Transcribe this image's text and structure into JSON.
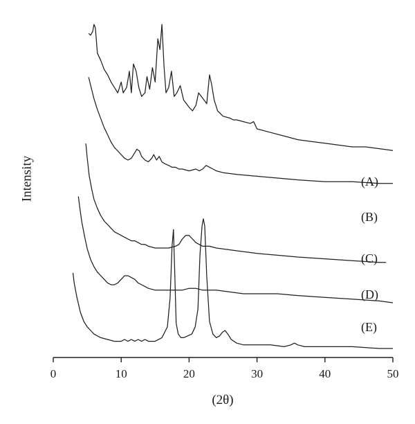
{
  "chart_data": {
    "type": "line",
    "title": "",
    "xlabel": "(2θ)",
    "ylabel": "Intensity",
    "xlim": [
      0,
      50
    ],
    "xticks": [
      0,
      10,
      20,
      30,
      40,
      50
    ],
    "y_ticks_shown": false,
    "grid": false,
    "legend": "labels at right end of each trace",
    "series_color": "#1e1e1e",
    "series": [
      {
        "name": "(A)",
        "x": [
          5.2,
          5.5,
          5.8,
          6.0,
          6.2,
          6.5,
          7.0,
          7.5,
          8.0,
          8.5,
          9.0,
          9.5,
          10.0,
          10.3,
          10.8,
          11.2,
          11.5,
          11.8,
          12.2,
          12.6,
          13.0,
          13.5,
          13.8,
          14.2,
          14.6,
          15.0,
          15.4,
          15.7,
          16.0,
          16.3,
          16.6,
          17.0,
          17.4,
          17.8,
          18.2,
          18.7,
          19.2,
          19.6,
          20.0,
          20.5,
          21.0,
          21.4,
          21.8,
          22.2,
          22.6,
          23.0,
          23.3,
          23.7,
          24.2,
          25.0,
          26.0,
          26.5,
          27.0,
          28.0,
          29.0,
          29.5,
          30.0,
          32.0,
          34.0,
          36.0,
          38.0,
          40.0,
          42.0,
          44.0,
          46.0,
          48.0,
          50.0
        ],
        "y": [
          93,
          92,
          94,
          98,
          96,
          82,
          78,
          73,
          70,
          66,
          63,
          60,
          66,
          60,
          63,
          72,
          60,
          76,
          72,
          63,
          58,
          60,
          69,
          62,
          74,
          66,
          90,
          84,
          98,
          75,
          60,
          63,
          72,
          58,
          60,
          64,
          56,
          54,
          52,
          50,
          53,
          60,
          58,
          56,
          54,
          70,
          65,
          56,
          50,
          47,
          46,
          45,
          45,
          44,
          43,
          44,
          40,
          38,
          36,
          34,
          33,
          32,
          31,
          30,
          30,
          29,
          28
        ]
      },
      {
        "name": "(B)",
        "x": [
          5.2,
          5.6,
          6.0,
          6.5,
          7.0,
          7.5,
          8.0,
          8.5,
          9.0,
          9.5,
          10.0,
          10.5,
          11.0,
          11.5,
          12.0,
          12.3,
          12.7,
          13.0,
          13.5,
          14.0,
          14.5,
          14.8,
          15.2,
          15.6,
          16.0,
          16.4,
          17.0,
          17.5,
          18.0,
          18.5,
          19.0,
          20.0,
          21.0,
          21.5,
          22.0,
          22.5,
          23.0,
          23.5,
          24.0,
          25.0,
          27.0,
          30.0,
          33.0,
          36.0,
          40.0,
          44.0,
          48.0,
          50.0
        ],
        "y": [
          86,
          80,
          74,
          68,
          63,
          58,
          54,
          50,
          47,
          45,
          43,
          41,
          40,
          41,
          44,
          46,
          45,
          42,
          40,
          39,
          41,
          43,
          40,
          42,
          39,
          38,
          37,
          36,
          36,
          35,
          35,
          34,
          35,
          34,
          35,
          37,
          36,
          35,
          34,
          33,
          32,
          31,
          30,
          29,
          28,
          28,
          27,
          27
        ]
      },
      {
        "name": "(C)",
        "x": [
          4.8,
          5.0,
          5.3,
          5.7,
          6.0,
          6.5,
          7.0,
          7.5,
          8.0,
          8.5,
          9.0,
          9.5,
          10.0,
          10.5,
          11.0,
          11.5,
          12.0,
          12.5,
          13.0,
          13.5,
          14.0,
          15.0,
          16.0,
          17.0,
          18.0,
          18.5,
          19.0,
          19.5,
          20.0,
          20.5,
          21.0,
          21.5,
          22.0,
          22.5,
          23.0,
          24.0,
          26.0,
          28.0,
          30.0,
          33.0,
          36.0,
          40.0,
          44.0,
          48.0,
          49.0
        ],
        "y": [
          78,
          70,
          60,
          52,
          47,
          42,
          38,
          35,
          33,
          31,
          29,
          28,
          27,
          26,
          25,
          24,
          24,
          23,
          22,
          22,
          21,
          20,
          20,
          20,
          21,
          22,
          25,
          27,
          27,
          25,
          23,
          22,
          21,
          21,
          21,
          20,
          19,
          18,
          17,
          16,
          15,
          14,
          13,
          12,
          12
        ]
      },
      {
        "name": "(D)",
        "x": [
          3.7,
          3.9,
          4.2,
          4.6,
          5.0,
          5.5,
          6.0,
          6.5,
          7.0,
          7.5,
          8.0,
          8.5,
          9.0,
          9.5,
          10.0,
          10.5,
          11.0,
          11.5,
          12.0,
          12.5,
          13.0,
          13.5,
          14.0,
          15.0,
          16.0,
          17.0,
          18.0,
          19.0,
          20.0,
          21.0,
          22.0,
          23.0,
          24.0,
          26.0,
          28.0,
          30.0,
          33.0,
          36.0,
          40.0,
          44.0,
          48.0,
          50.0
        ],
        "y": [
          64,
          58,
          50,
          42,
          35,
          29,
          25,
          22,
          20,
          18,
          16,
          15,
          15,
          16,
          18,
          20,
          20,
          19,
          18,
          16,
          15,
          14,
          13,
          12,
          12,
          12,
          12,
          12,
          13,
          13,
          12,
          12,
          12,
          11,
          10,
          10,
          10,
          9,
          8,
          7,
          6,
          5
        ]
      },
      {
        "name": "(E)",
        "x": [
          2.9,
          3.1,
          3.5,
          4.0,
          4.5,
          5.0,
          5.5,
          6.0,
          7.0,
          8.0,
          9.0,
          10.0,
          10.5,
          11.0,
          11.5,
          12.0,
          12.5,
          13.0,
          13.5,
          14.0,
          15.0,
          16.0,
          16.8,
          17.2,
          17.5,
          17.7,
          17.9,
          18.1,
          18.4,
          18.8,
          19.2,
          19.8,
          20.4,
          20.9,
          21.3,
          21.6,
          21.9,
          22.1,
          22.3,
          22.6,
          23.0,
          23.5,
          24.0,
          24.5,
          24.9,
          25.3,
          25.7,
          26.2,
          27.0,
          28.0,
          30.0,
          32.0,
          34.0,
          35.0,
          35.5,
          36.0,
          37.0,
          40.0,
          44.0,
          48.0,
          50.0
        ],
        "y": [
          42,
          36,
          28,
          20,
          15,
          12,
          10,
          8,
          6,
          5,
          4,
          4,
          5,
          4,
          5,
          4,
          5,
          4,
          5,
          4,
          4,
          6,
          12,
          28,
          57,
          66,
          40,
          14,
          8,
          6,
          6,
          7,
          8,
          12,
          22,
          52,
          68,
          72,
          68,
          40,
          15,
          8,
          6,
          7,
          9,
          10,
          8,
          5,
          3,
          2,
          2,
          2,
          1,
          2,
          3,
          2,
          1,
          1,
          1,
          0,
          0
        ]
      }
    ]
  }
}
